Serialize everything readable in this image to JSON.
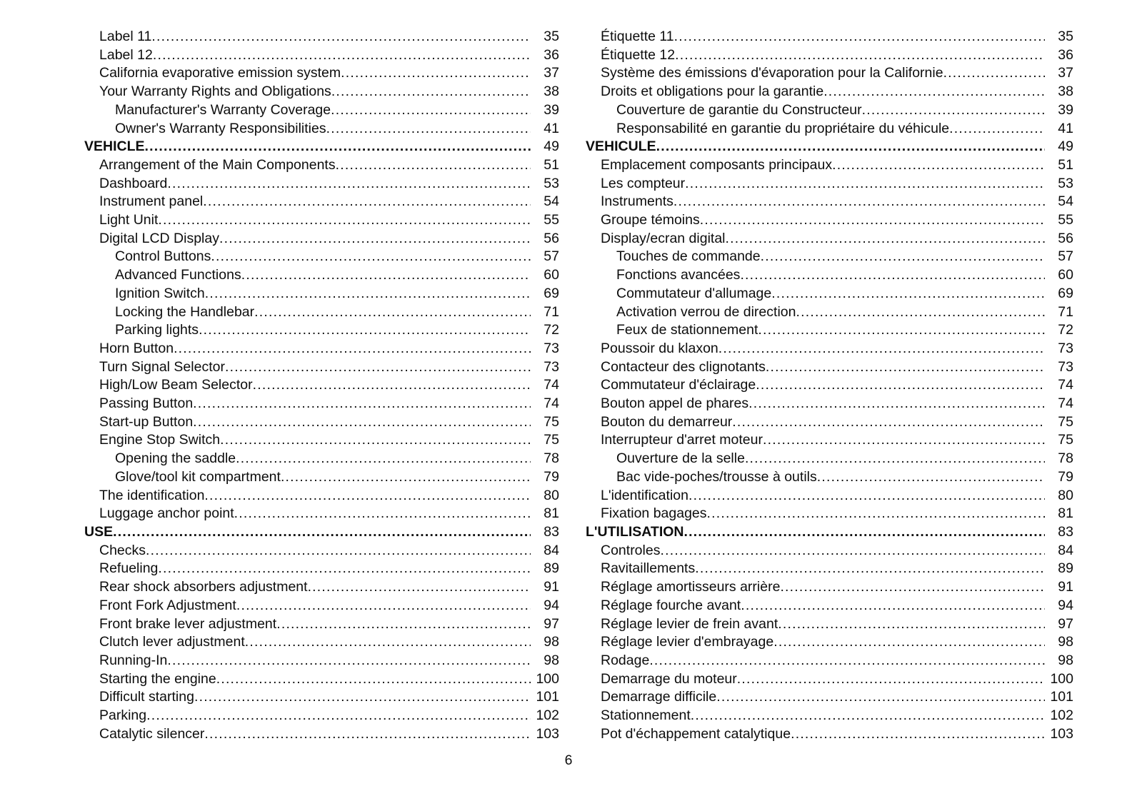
{
  "colors": {
    "text": "#0d0d0d",
    "background": "#ffffff"
  },
  "page": {
    "number": "6"
  },
  "toc": {
    "left_column": {
      "language": "English",
      "items": [
        {
          "label": "Label 11",
          "page": "35",
          "level": 1
        },
        {
          "label": "Label 12",
          "page": "36",
          "level": 1
        },
        {
          "label": "California evaporative emission system",
          "page": "37",
          "level": 1
        },
        {
          "label": "Your Warranty Rights and Obligations",
          "page": "38",
          "level": 1
        },
        {
          "label": "Manufacturer's Warranty Coverage",
          "page": "39",
          "level": 2
        },
        {
          "label": "Owner's Warranty Responsibilities",
          "page": "41",
          "level": 2
        },
        {
          "label": "VEHICLE",
          "page": "49",
          "level": 0
        },
        {
          "label": "Arrangement of the Main Components",
          "page": "51",
          "level": 1
        },
        {
          "label": "Dashboard",
          "page": "53",
          "level": 1
        },
        {
          "label": "Instrument panel",
          "page": "54",
          "level": 1
        },
        {
          "label": "Light Unit",
          "page": "55",
          "level": 1
        },
        {
          "label": "Digital LCD Display",
          "page": "56",
          "level": 1
        },
        {
          "label": "Control Buttons",
          "page": "57",
          "level": 2
        },
        {
          "label": "Advanced Functions",
          "page": "60",
          "level": 2
        },
        {
          "label": "Ignition Switch",
          "page": "69",
          "level": 2
        },
        {
          "label": "Locking the Handlebar",
          "page": "71",
          "level": 2
        },
        {
          "label": "Parking lights",
          "page": "72",
          "level": 2
        },
        {
          "label": "Horn Button",
          "page": "73",
          "level": 1
        },
        {
          "label": "Turn Signal Selector",
          "page": "73",
          "level": 1
        },
        {
          "label": "High/Low Beam Selector",
          "page": "74",
          "level": 1
        },
        {
          "label": "Passing Button",
          "page": "74",
          "level": 1
        },
        {
          "label": "Start-up Button",
          "page": "75",
          "level": 1
        },
        {
          "label": "Engine Stop Switch",
          "page": "75",
          "level": 1
        },
        {
          "label": "Opening the saddle",
          "page": "78",
          "level": 2
        },
        {
          "label": "Glove/tool kit compartment",
          "page": "79",
          "level": 2
        },
        {
          "label": "The identification",
          "page": "80",
          "level": 1
        },
        {
          "label": "Luggage anchor point",
          "page": "81",
          "level": 1
        },
        {
          "label": "USE",
          "page": "83",
          "level": 0
        },
        {
          "label": "Checks",
          "page": "84",
          "level": 1
        },
        {
          "label": "Refueling",
          "page": "89",
          "level": 1
        },
        {
          "label": "Rear shock absorbers adjustment",
          "page": "91",
          "level": 1
        },
        {
          "label": "Front Fork Adjustment",
          "page": "94",
          "level": 1
        },
        {
          "label": "Front brake lever adjustment",
          "page": "97",
          "level": 1
        },
        {
          "label": "Clutch lever adjustment",
          "page": "98",
          "level": 1
        },
        {
          "label": "Running-In",
          "page": "98",
          "level": 1
        },
        {
          "label": "Starting the engine",
          "page": "100",
          "level": 1
        },
        {
          "label": "Difficult starting",
          "page": "101",
          "level": 1
        },
        {
          "label": "Parking",
          "page": "102",
          "level": 1
        },
        {
          "label": "Catalytic silencer",
          "page": "103",
          "level": 1
        }
      ]
    },
    "right_column": {
      "language": "French",
      "items": [
        {
          "label": "Étiquette 11",
          "page": "35",
          "level": 1
        },
        {
          "label": "Étiquette 12",
          "page": "36",
          "level": 1
        },
        {
          "label": "Système des émissions d'évaporation pour la Californie",
          "page": "37",
          "level": 1
        },
        {
          "label": "Droits et obligations pour la garantie",
          "page": "38",
          "level": 1
        },
        {
          "label": "Couverture de garantie du Constructeur",
          "page": "39",
          "level": 2
        },
        {
          "label": "Responsabilité en garantie du propriétaire du véhicule",
          "page": "41",
          "level": 2
        },
        {
          "label": "VEHICULE",
          "page": "49",
          "level": 0
        },
        {
          "label": "Emplacement composants principaux",
          "page": "51",
          "level": 1
        },
        {
          "label": "Les compteur",
          "page": "53",
          "level": 1
        },
        {
          "label": "Instruments",
          "page": "54",
          "level": 1
        },
        {
          "label": "Groupe témoins",
          "page": "55",
          "level": 1
        },
        {
          "label": "Display/ecran digital",
          "page": "56",
          "level": 1
        },
        {
          "label": "Touches de commande",
          "page": "57",
          "level": 2
        },
        {
          "label": "Fonctions avancées",
          "page": "60",
          "level": 2
        },
        {
          "label": "Commutateur d'allumage",
          "page": "69",
          "level": 2
        },
        {
          "label": "Activation verrou de direction",
          "page": "71",
          "level": 2
        },
        {
          "label": "Feux de stationnement",
          "page": "72",
          "level": 2
        },
        {
          "label": "Poussoir du klaxon",
          "page": "73",
          "level": 1
        },
        {
          "label": "Contacteur des clignotants",
          "page": "73",
          "level": 1
        },
        {
          "label": "Commutateur d'éclairage",
          "page": "74",
          "level": 1
        },
        {
          "label": "Bouton appel de phares",
          "page": "74",
          "level": 1
        },
        {
          "label": "Bouton du demarreur",
          "page": "75",
          "level": 1
        },
        {
          "label": "Interrupteur d'arret moteur",
          "page": "75",
          "level": 1
        },
        {
          "label": "Ouverture de la selle",
          "page": "78",
          "level": 2
        },
        {
          "label": "Bac vide-poches/trousse à outils",
          "page": "79",
          "level": 2
        },
        {
          "label": "L'identification",
          "page": "80",
          "level": 1
        },
        {
          "label": "Fixation bagages",
          "page": "81",
          "level": 1
        },
        {
          "label": "L'UTILISATION",
          "page": "83",
          "level": 0
        },
        {
          "label": "Controles",
          "page": "84",
          "level": 1
        },
        {
          "label": "Ravitaillements",
          "page": "89",
          "level": 1
        },
        {
          "label": "Réglage amortisseurs arrière",
          "page": "91",
          "level": 1
        },
        {
          "label": "Réglage fourche avant",
          "page": "94",
          "level": 1
        },
        {
          "label": "Réglage levier de frein avant",
          "page": "97",
          "level": 1
        },
        {
          "label": "Réglage levier d'embrayage",
          "page": "98",
          "level": 1
        },
        {
          "label": "Rodage",
          "page": "98",
          "level": 1
        },
        {
          "label": "Demarrage du moteur",
          "page": "100",
          "level": 1
        },
        {
          "label": "Demarrage difficile",
          "page": "101",
          "level": 1
        },
        {
          "label": "Stationnement",
          "page": "102",
          "level": 1
        },
        {
          "label": "Pot d'échappement catalytique",
          "page": "103",
          "level": 1
        }
      ]
    }
  }
}
